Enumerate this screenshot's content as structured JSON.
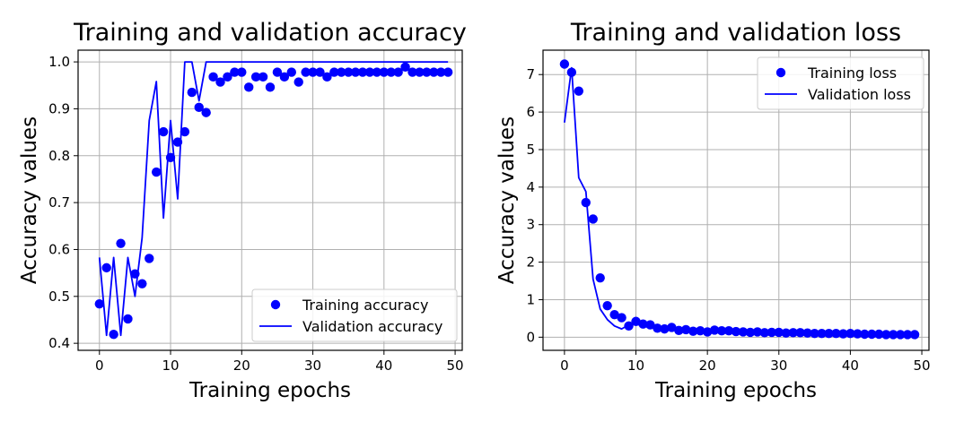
{
  "chart_data": [
    {
      "type": "scatter+line",
      "title": "Training and validation accuracy",
      "xlabel": "Training epochs",
      "ylabel": "Accuracy values",
      "xlim": [
        -3,
        51
      ],
      "ylim": [
        0.385,
        1.025
      ],
      "xticks": [
        0,
        10,
        20,
        30,
        40,
        50
      ],
      "yticks": [
        0.4,
        0.5,
        0.6,
        0.7,
        0.8,
        0.9,
        1.0
      ],
      "ytick_labels": [
        "0.4",
        "0.5",
        "0.6",
        "0.7",
        "0.8",
        "0.9",
        "1.0"
      ],
      "grid": true,
      "legend_position": "lower-right",
      "color": "#0000ff",
      "series": [
        {
          "name": "Training accuracy",
          "style": "markers",
          "x": [
            0,
            1,
            2,
            3,
            4,
            5,
            6,
            7,
            8,
            9,
            10,
            11,
            12,
            13,
            14,
            15,
            16,
            17,
            18,
            19,
            20,
            21,
            22,
            23,
            24,
            25,
            26,
            27,
            28,
            29,
            30,
            31,
            32,
            33,
            34,
            35,
            36,
            37,
            38,
            39,
            40,
            41,
            42,
            43,
            44,
            45,
            46,
            47,
            48,
            49
          ],
          "values": [
            0.484,
            0.561,
            0.419,
            0.613,
            0.452,
            0.548,
            0.527,
            0.581,
            0.765,
            0.851,
            0.796,
            0.829,
            0.851,
            0.935,
            0.903,
            0.892,
            0.968,
            0.957,
            0.968,
            0.978,
            0.978,
            0.946,
            0.968,
            0.968,
            0.946,
            0.978,
            0.968,
            0.978,
            0.957,
            0.978,
            0.978,
            0.978,
            0.968,
            0.978,
            0.978,
            0.978,
            0.978,
            0.978,
            0.978,
            0.978,
            0.978,
            0.978,
            0.978,
            0.989,
            0.978,
            0.978,
            0.978,
            0.978,
            0.978,
            0.978
          ]
        },
        {
          "name": "Validation accuracy",
          "style": "line",
          "x": [
            0,
            1,
            2,
            3,
            4,
            5,
            6,
            7,
            8,
            9,
            10,
            11,
            12,
            13,
            14,
            15,
            16,
            17,
            18,
            19,
            20,
            21,
            22,
            23,
            24,
            25,
            26,
            27,
            28,
            29,
            30,
            31,
            32,
            33,
            34,
            35,
            36,
            37,
            38,
            39,
            40,
            41,
            42,
            43,
            44,
            45,
            46,
            47,
            48,
            49
          ],
          "values": [
            0.583,
            0.417,
            0.583,
            0.417,
            0.583,
            0.5,
            0.625,
            0.875,
            0.958,
            0.667,
            0.875,
            0.708,
            1.0,
            1.0,
            0.917,
            1.0,
            1.0,
            1.0,
            1.0,
            1.0,
            1.0,
            1.0,
            1.0,
            1.0,
            1.0,
            1.0,
            1.0,
            1.0,
            1.0,
            1.0,
            1.0,
            1.0,
            1.0,
            1.0,
            1.0,
            1.0,
            1.0,
            1.0,
            1.0,
            1.0,
            1.0,
            1.0,
            1.0,
            1.0,
            1.0,
            1.0,
            1.0,
            1.0,
            1.0,
            1.0
          ]
        }
      ]
    },
    {
      "type": "scatter+line",
      "title": "Training and validation loss",
      "xlabel": "Training epochs",
      "ylabel": "Accuracy values",
      "xlim": [
        -3,
        51
      ],
      "ylim": [
        -0.35,
        7.65
      ],
      "xticks": [
        0,
        10,
        20,
        30,
        40,
        50
      ],
      "yticks": [
        0,
        1,
        2,
        3,
        4,
        5,
        6,
        7
      ],
      "ytick_labels": [
        "0",
        "1",
        "2",
        "3",
        "4",
        "5",
        "6",
        "7"
      ],
      "grid": true,
      "legend_position": "upper-right",
      "color": "#0000ff",
      "series": [
        {
          "name": "Training loss",
          "style": "markers",
          "x": [
            0,
            1,
            2,
            3,
            4,
            5,
            6,
            7,
            8,
            9,
            10,
            11,
            12,
            13,
            14,
            15,
            16,
            17,
            18,
            19,
            20,
            21,
            22,
            23,
            24,
            25,
            26,
            27,
            28,
            29,
            30,
            31,
            32,
            33,
            34,
            35,
            36,
            37,
            38,
            39,
            40,
            41,
            42,
            43,
            44,
            45,
            46,
            47,
            48,
            49
          ],
          "values": [
            7.28,
            7.06,
            6.56,
            3.59,
            3.15,
            1.58,
            0.84,
            0.6,
            0.52,
            0.3,
            0.42,
            0.35,
            0.33,
            0.24,
            0.22,
            0.26,
            0.18,
            0.2,
            0.16,
            0.17,
            0.14,
            0.19,
            0.17,
            0.17,
            0.15,
            0.14,
            0.13,
            0.14,
            0.12,
            0.13,
            0.13,
            0.11,
            0.12,
            0.12,
            0.11,
            0.1,
            0.1,
            0.1,
            0.1,
            0.09,
            0.1,
            0.09,
            0.08,
            0.08,
            0.08,
            0.07,
            0.07,
            0.07,
            0.07,
            0.07
          ]
        },
        {
          "name": "Validation loss",
          "style": "line",
          "x": [
            0,
            1,
            2,
            3,
            4,
            5,
            6,
            7,
            8,
            9,
            10,
            11,
            12,
            13,
            14,
            15,
            16,
            17,
            18,
            19,
            20,
            21,
            22,
            23,
            24,
            25,
            26,
            27,
            28,
            29,
            30,
            31,
            32,
            33,
            34,
            35,
            36,
            37,
            38,
            39,
            40,
            41,
            42,
            43,
            44,
            45,
            46,
            47,
            48,
            49
          ],
          "values": [
            5.72,
            7.18,
            4.25,
            3.88,
            1.55,
            0.75,
            0.47,
            0.3,
            0.22,
            0.33,
            0.35,
            0.3,
            0.25,
            0.25,
            0.22,
            0.22,
            0.18,
            0.17,
            0.16,
            0.15,
            0.14,
            0.14,
            0.13,
            0.13,
            0.12,
            0.12,
            0.11,
            0.11,
            0.11,
            0.1,
            0.1,
            0.1,
            0.1,
            0.09,
            0.09,
            0.09,
            0.09,
            0.09,
            0.08,
            0.08,
            0.08,
            0.08,
            0.08,
            0.07,
            0.07,
            0.07,
            0.07,
            0.07,
            0.07,
            0.07
          ]
        }
      ]
    }
  ]
}
